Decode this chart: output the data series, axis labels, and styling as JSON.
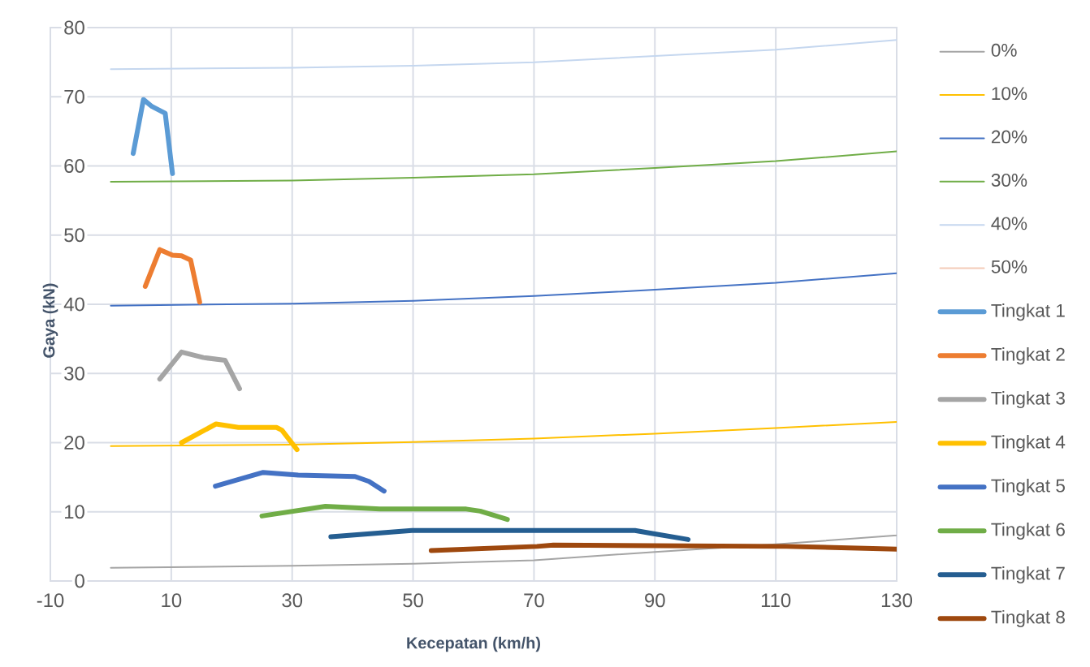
{
  "chart_data": {
    "type": "line",
    "xlabel": "Kecepatan (km/h)",
    "ylabel": "Gaya (kN)",
    "xlim": [
      -10,
      130
    ],
    "ylim": [
      0,
      80
    ],
    "xticks": [
      -10,
      10,
      30,
      50,
      70,
      90,
      110,
      130
    ],
    "yticks": [
      0,
      10,
      20,
      30,
      40,
      50,
      60,
      70,
      80
    ],
    "grid": true,
    "legend": "right",
    "marker": "none",
    "line_style": "solid",
    "series": [
      {
        "name": "0%",
        "color": "#a5a5a5",
        "x": [
          0,
          30,
          50,
          70,
          90,
          110,
          130
        ],
        "values": [
          1.9,
          2.2,
          2.5,
          3.0,
          4.2,
          5.3,
          6.6
        ]
      },
      {
        "name": "10%",
        "color": "#ffc000",
        "x": [
          0,
          30,
          50,
          70,
          90,
          110,
          130
        ],
        "values": [
          19.5,
          19.7,
          20.1,
          20.6,
          21.3,
          22.1,
          23.0
        ]
      },
      {
        "name": "20%",
        "color": "#4472c4",
        "x": [
          0,
          30,
          50,
          70,
          90,
          110,
          130
        ],
        "values": [
          39.8,
          40.1,
          40.5,
          41.2,
          42.1,
          43.1,
          44.5
        ]
      },
      {
        "name": "30%",
        "color": "#70ad47",
        "x": [
          0,
          30,
          50,
          70,
          90,
          110,
          130
        ],
        "values": [
          57.7,
          57.9,
          58.3,
          58.8,
          59.7,
          60.7,
          62.1
        ]
      },
      {
        "name": "40%",
        "color": "#c5d7ef",
        "x": [
          0,
          30,
          50,
          70,
          90,
          110,
          130
        ],
        "values": [
          74.0,
          74.2,
          74.5,
          75.0,
          75.9,
          76.8,
          78.2
        ]
      },
      {
        "name": "50%",
        "color": "#f4cbb8"
      },
      {
        "name": "Tingkat 1",
        "color": "#5b9bd5",
        "x": [
          3.7,
          5.4,
          6.8,
          7.7,
          9.0,
          10.2
        ],
        "values": [
          61.8,
          69.6,
          68.6,
          68.2,
          67.6,
          58.9
        ]
      },
      {
        "name": "Tingkat 2",
        "color": "#ed7d31",
        "x": [
          5.7,
          8.1,
          10.2,
          11.7,
          13.2,
          14.7
        ],
        "values": [
          42.6,
          47.9,
          47.1,
          47.0,
          46.4,
          40.3
        ]
      },
      {
        "name": "Tingkat 3",
        "color": "#a5a5a5",
        "x": [
          8.1,
          11.7,
          15.3,
          18.9,
          21.3
        ],
        "values": [
          29.2,
          33.1,
          32.3,
          31.9,
          27.8
        ]
      },
      {
        "name": "Tingkat 4",
        "color": "#ffc000",
        "x": [
          11.7,
          17.4,
          21.1,
          27.4,
          28.3,
          30.8
        ],
        "values": [
          20.0,
          22.7,
          22.2,
          22.2,
          21.8,
          19.0
        ]
      },
      {
        "name": "Tingkat 5",
        "color": "#4472c4",
        "x": [
          17.3,
          25.2,
          31.0,
          40.4,
          42.7,
          45.2
        ],
        "values": [
          13.7,
          15.7,
          15.3,
          15.1,
          14.4,
          13.0
        ]
      },
      {
        "name": "Tingkat 6",
        "color": "#70ad47",
        "x": [
          25.0,
          35.5,
          44.5,
          58.8,
          61.1,
          65.6
        ],
        "values": [
          9.4,
          10.8,
          10.4,
          10.4,
          10.1,
          8.9
        ]
      },
      {
        "name": "Tingkat 7",
        "color": "#255e91",
        "x": [
          36.4,
          49.8,
          86.7,
          89.4,
          95.5
        ],
        "values": [
          6.4,
          7.3,
          7.3,
          6.9,
          6.0
        ]
      },
      {
        "name": "Tingkat 8",
        "color": "#9e480e",
        "x": [
          53.0,
          70.5,
          73.2,
          111.8,
          130
        ],
        "values": [
          4.4,
          5.0,
          5.2,
          5.0,
          4.6
        ]
      }
    ]
  }
}
